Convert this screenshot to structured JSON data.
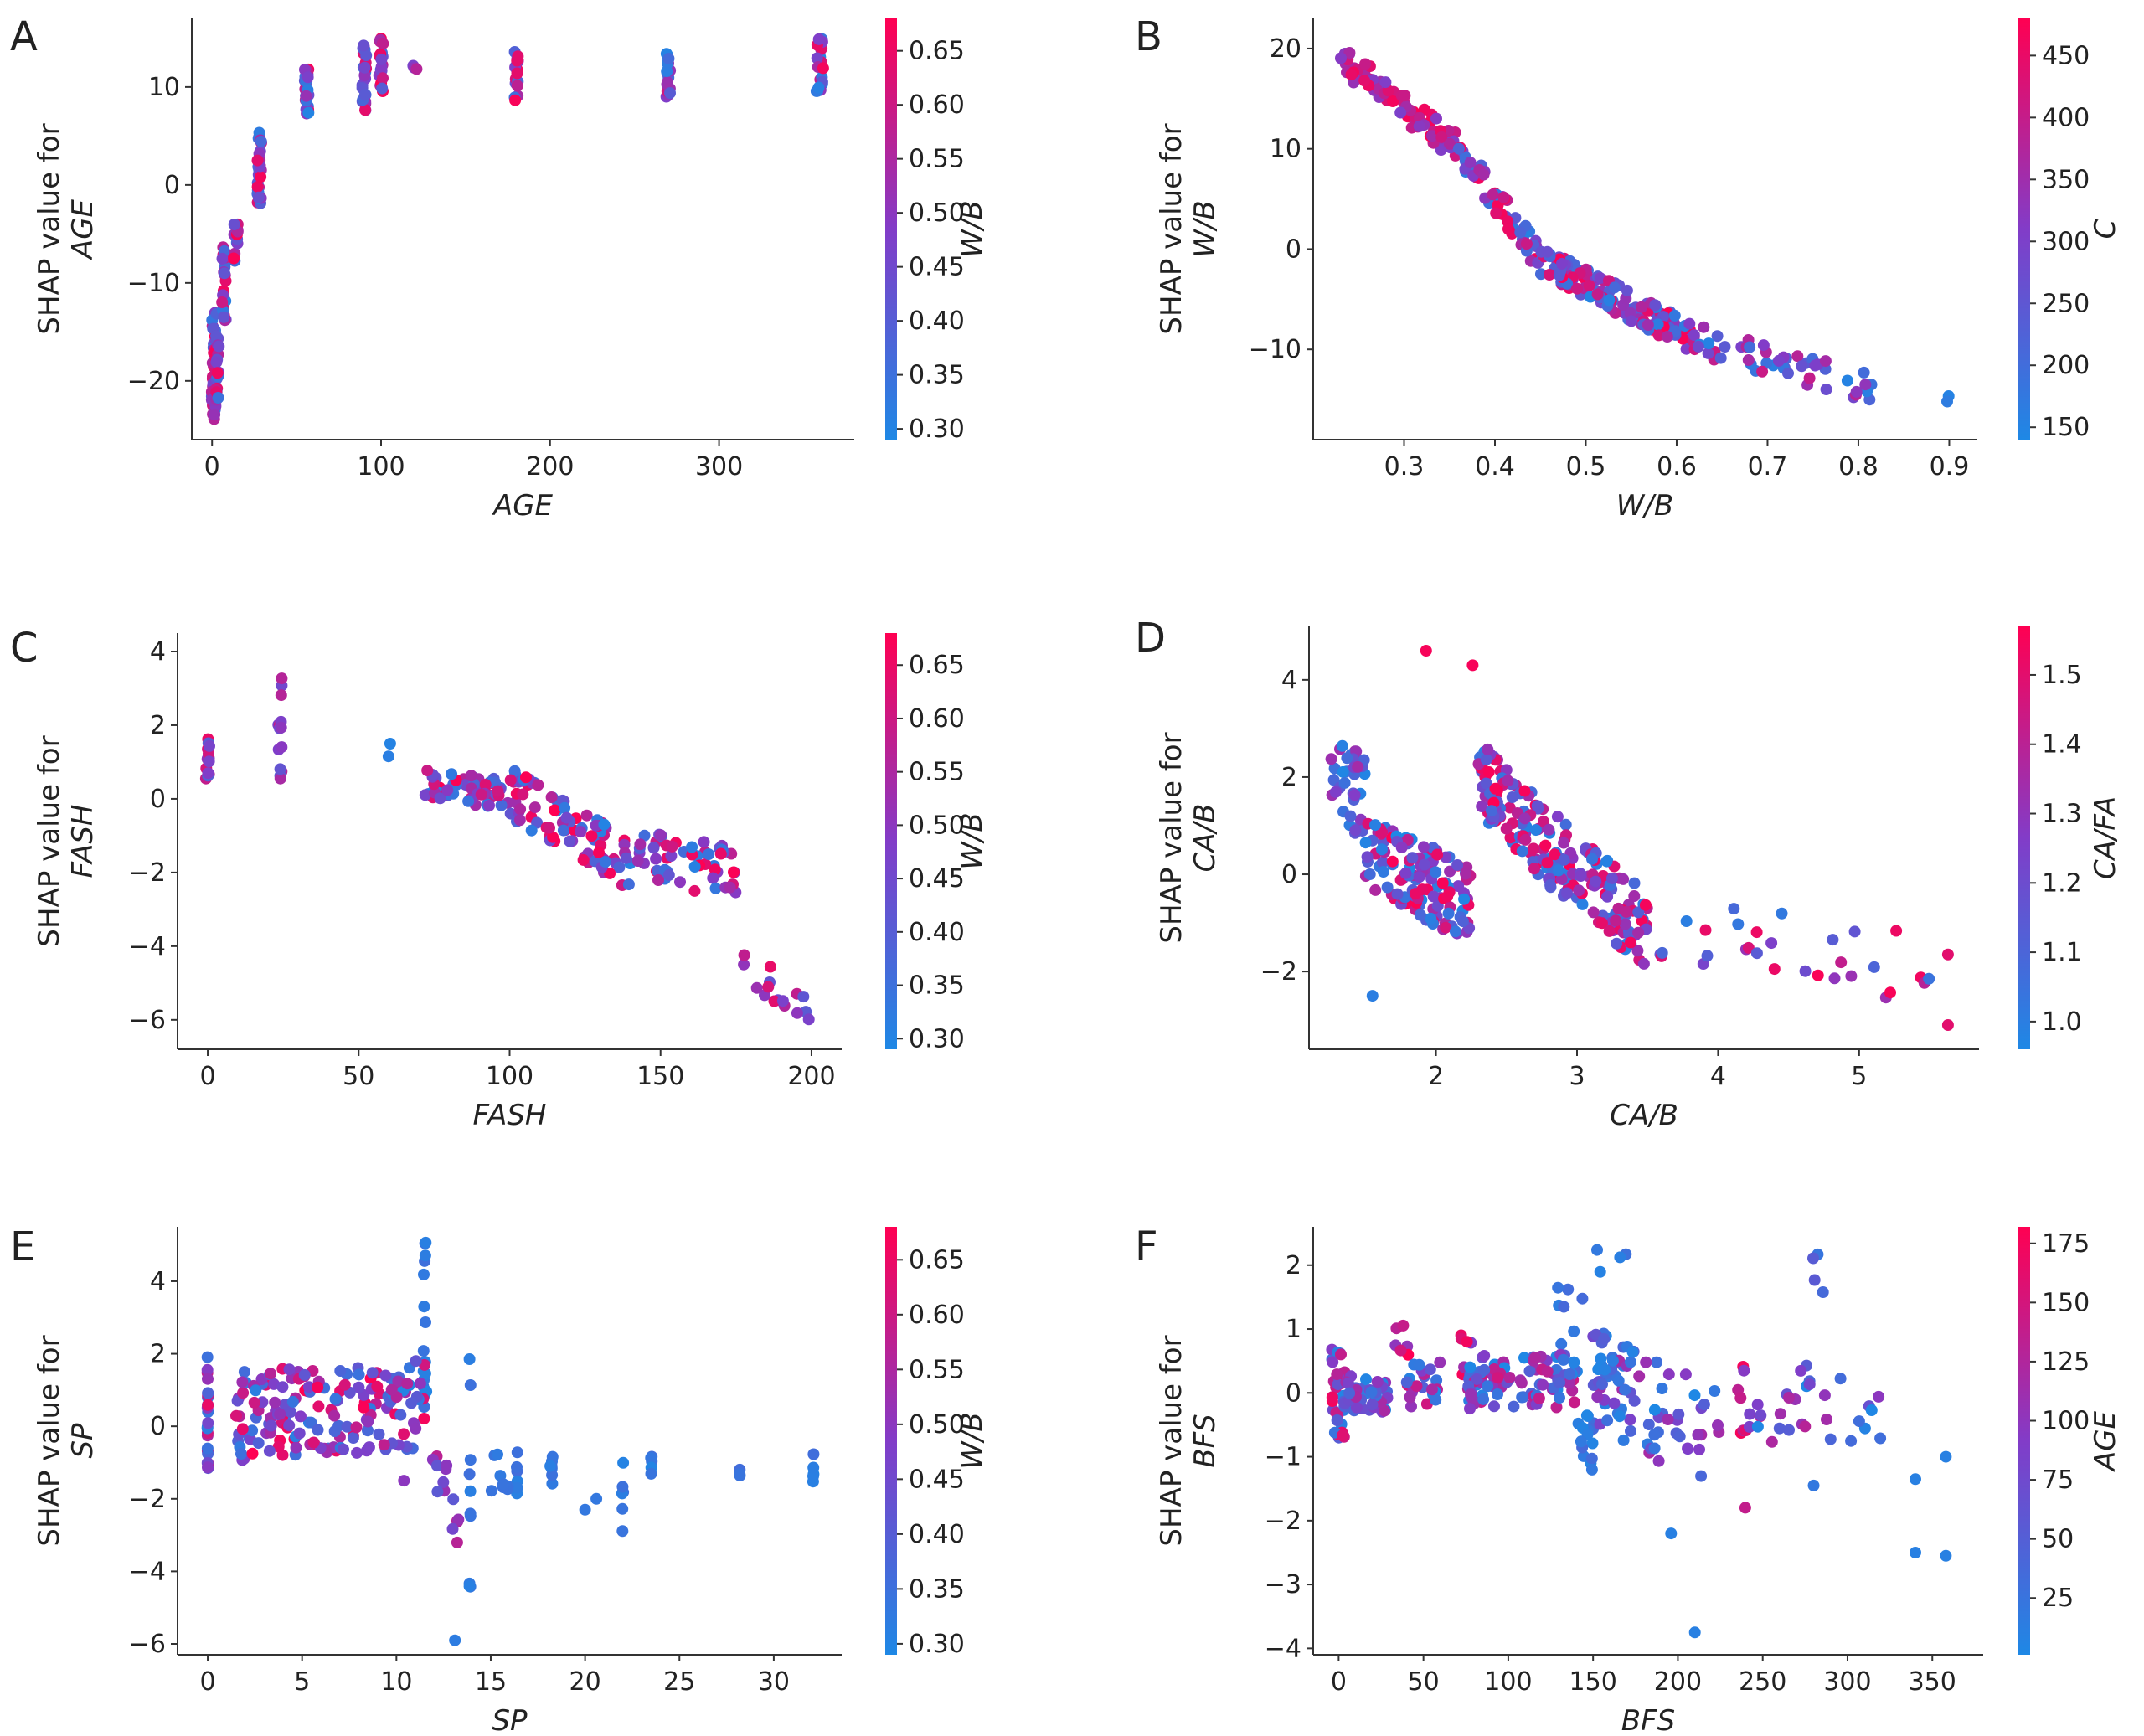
{
  "chart_data": [
    {
      "panel": "A",
      "type": "scatter",
      "xlabel": "AGE",
      "ylabel_line1": "SHAP value for",
      "ylabel_line2": "AGE",
      "xlim": [
        -12,
        380
      ],
      "ylim": [
        -26,
        17
      ],
      "xticks": [
        0,
        100,
        200,
        300
      ],
      "yticks": [
        -20,
        -10,
        0,
        10
      ],
      "colorbar": {
        "label": "W/B",
        "range": [
          0.29,
          0.68
        ],
        "ticks": [
          0.3,
          0.35,
          0.4,
          0.45,
          0.5,
          0.55,
          0.6,
          0.65
        ]
      },
      "clusters": [
        {
          "x": 1,
          "jitter": 0.3,
          "y": [
            -25,
            -13
          ],
          "c": [
            0.3,
            0.68
          ],
          "n": 45
        },
        {
          "x": 3,
          "jitter": 0.3,
          "y": [
            -22,
            -13
          ],
          "c": [
            0.3,
            0.68
          ],
          "n": 25
        },
        {
          "x": 7,
          "jitter": 0.3,
          "y": [
            -14,
            -6
          ],
          "c": [
            0.3,
            0.68
          ],
          "n": 25
        },
        {
          "x": 14,
          "jitter": 0.3,
          "y": [
            -8,
            -3
          ],
          "c": [
            0.3,
            0.68
          ],
          "n": 15
        },
        {
          "x": 28,
          "jitter": 0.3,
          "y": [
            -2,
            6
          ],
          "c": [
            0.3,
            0.68
          ],
          "n": 30
        },
        {
          "x": 56,
          "jitter": 0.3,
          "y": [
            6.5,
            12
          ],
          "c": [
            0.3,
            0.68
          ],
          "n": 25
        },
        {
          "x": 90,
          "jitter": 0.3,
          "y": [
            7.5,
            15
          ],
          "c": [
            0.3,
            0.68
          ],
          "n": 25
        },
        {
          "x": 100,
          "jitter": 0.3,
          "y": [
            9.5,
            15
          ],
          "c": [
            0.3,
            0.68
          ],
          "n": 22
        },
        {
          "x": 120,
          "jitter": 0.3,
          "y": [
            11.8,
            12.5
          ],
          "c": [
            0.3,
            0.68
          ],
          "n": 3
        },
        {
          "x": 180,
          "jitter": 0.3,
          "y": [
            8.5,
            14
          ],
          "c": [
            0.3,
            0.68
          ],
          "n": 18
        },
        {
          "x": 270,
          "jitter": 0.3,
          "y": [
            9,
            14
          ],
          "c": [
            0.3,
            0.68
          ],
          "n": 18
        },
        {
          "x": 360,
          "jitter": 0.6,
          "y": [
            9.5,
            15.5
          ],
          "c": [
            0.3,
            0.68
          ],
          "n": 20
        }
      ]
    },
    {
      "panel": "B",
      "type": "scatter",
      "xlabel": "W/B",
      "ylabel_line1": "SHAP value for",
      "ylabel_line2": "W/B",
      "xlim": [
        0.2,
        0.93
      ],
      "ylim": [
        -19,
        23
      ],
      "xticks": [
        0.3,
        0.4,
        0.5,
        0.6,
        0.7,
        0.8,
        0.9
      ],
      "yticks": [
        -10,
        0,
        10,
        20
      ],
      "colorbar": {
        "label": "C",
        "range": [
          140,
          480
        ],
        "ticks": [
          150,
          200,
          250,
          300,
          350,
          400,
          450
        ]
      },
      "segments": [
        {
          "x": [
            0.23,
            0.36
          ],
          "y": [
            19,
            10
          ],
          "spread": 3,
          "c": [
            300,
            480
          ],
          "n": 80
        },
        {
          "x": [
            0.36,
            0.45
          ],
          "y": [
            10,
            -1
          ],
          "spread": 3,
          "c": [
            150,
            480
          ],
          "n": 60
        },
        {
          "x": [
            0.45,
            0.62
          ],
          "y": [
            -1,
            -9
          ],
          "spread": 3,
          "c": [
            150,
            480
          ],
          "n": 140
        },
        {
          "x": [
            0.62,
            0.82
          ],
          "y": [
            -9,
            -14
          ],
          "spread": 3,
          "c": [
            150,
            420
          ],
          "n": 50
        },
        {
          "x": [
            0.895,
            0.9
          ],
          "y": [
            -17,
            -14
          ],
          "spread": 0.5,
          "c": [
            150,
            180
          ],
          "n": 2
        }
      ]
    },
    {
      "panel": "C",
      "type": "scatter",
      "xlabel": "FASH",
      "ylabel_line1": "SHAP value for",
      "ylabel_line2": "FASH",
      "xlim": [
        -10,
        210
      ],
      "ylim": [
        -6.8,
        4.5
      ],
      "xticks": [
        0,
        50,
        100,
        150,
        200
      ],
      "yticks": [
        -6,
        -4,
        -2,
        0,
        2,
        4
      ],
      "colorbar": {
        "label": "W/B",
        "range": [
          0.29,
          0.68
        ],
        "ticks": [
          0.3,
          0.35,
          0.4,
          0.45,
          0.5,
          0.55,
          0.6,
          0.65
        ]
      },
      "clusters": [
        {
          "x": 0,
          "jitter": 0.3,
          "y": [
            0.4,
            1.7
          ],
          "c": [
            0.3,
            0.68
          ],
          "n": 14
        },
        {
          "x": 24,
          "jitter": 0.3,
          "y": [
            0.5,
            3.5
          ],
          "c": [
            0.4,
            0.6
          ],
          "n": 14
        },
        {
          "x": 60,
          "jitter": 0.3,
          "y": [
            0.4,
            1.9
          ],
          "c": [
            0.3,
            0.34
          ],
          "n": 2
        }
      ],
      "segments": [
        {
          "x": [
            72,
            100
          ],
          "y": [
            0.4,
            0.1
          ],
          "spread": 0.8,
          "c": [
            0.3,
            0.68
          ],
          "n": 60
        },
        {
          "x": [
            100,
            140
          ],
          "y": [
            0.2,
            -1.8
          ],
          "spread": 1.4,
          "c": [
            0.3,
            0.68
          ],
          "n": 90
        },
        {
          "x": [
            140,
            175
          ],
          "y": [
            -1.5,
            -2.0
          ],
          "spread": 1.4,
          "c": [
            0.3,
            0.68
          ],
          "n": 55
        },
        {
          "x": [
            175,
            200
          ],
          "y": [
            -4.5,
            -6.1
          ],
          "spread": 1.4,
          "c": [
            0.4,
            0.68
          ],
          "n": 16
        }
      ]
    },
    {
      "panel": "D",
      "type": "scatter",
      "xlabel": "CA/B",
      "ylabel_line1": "SHAP value for",
      "ylabel_line2": "CA/B",
      "xlim": [
        1.1,
        5.85
      ],
      "ylim": [
        -3.6,
        5.1
      ],
      "xticks": [
        2,
        3,
        4,
        5
      ],
      "yticks": [
        -2,
        0,
        2,
        4
      ],
      "colorbar": {
        "label": "CA/FA",
        "range": [
          0.96,
          1.57
        ],
        "ticks": [
          1.0,
          1.1,
          1.2,
          1.3,
          1.4,
          1.5
        ]
      },
      "segments": [
        {
          "x": [
            1.25,
            1.5
          ],
          "y": [
            2.0,
            1.6
          ],
          "spread": 1.8,
          "c": [
            0.96,
            1.35
          ],
          "n": 35
        },
        {
          "x": [
            1.5,
            2.25
          ],
          "y": [
            0.4,
            -0.6
          ],
          "spread": 1.6,
          "c": [
            0.96,
            1.57
          ],
          "n": 130
        },
        {
          "x": [
            2.3,
            3.0
          ],
          "y": [
            2.0,
            0.0
          ],
          "spread": 1.6,
          "c": [
            0.96,
            1.57
          ],
          "n": 130
        },
        {
          "x": [
            3.0,
            3.5
          ],
          "y": [
            0.0,
            -1.2
          ],
          "spread": 1.6,
          "c": [
            0.96,
            1.57
          ],
          "n": 80
        },
        {
          "x": [
            3.5,
            5.6
          ],
          "y": [
            -1.0,
            -2.0
          ],
          "spread": 1.5,
          "c": [
            1.0,
            1.57
          ],
          "n": 30
        }
      ],
      "points": [
        {
          "x": 1.93,
          "y": 4.6,
          "c": 1.55
        },
        {
          "x": 2.26,
          "y": 4.3,
          "c": 1.55
        },
        {
          "x": 1.55,
          "y": -2.5,
          "c": 1.0
        },
        {
          "x": 5.63,
          "y": -3.1,
          "c": 1.5
        },
        {
          "x": 5.63,
          "y": -1.65,
          "c": 1.5
        }
      ]
    },
    {
      "panel": "E",
      "type": "scatter",
      "xlabel": "SP",
      "ylabel_line1": "SHAP value for",
      "ylabel_line2": "SP",
      "xlim": [
        -1.6,
        33.6
      ],
      "ylim": [
        -6.3,
        5.5
      ],
      "xticks": [
        0,
        5,
        10,
        15,
        20,
        25,
        30
      ],
      "yticks": [
        -6,
        -4,
        -2,
        0,
        2,
        4
      ],
      "colorbar": {
        "label": "W/B",
        "range": [
          0.29,
          0.68
        ],
        "ticks": [
          0.3,
          0.35,
          0.4,
          0.45,
          0.5,
          0.55,
          0.6,
          0.65
        ]
      },
      "clusters": [
        {
          "x": 0,
          "jitter": 0.05,
          "y": [
            -1.5,
            2.0
          ],
          "c": [
            0.3,
            0.68
          ],
          "n": 25
        },
        {
          "x": 11.5,
          "jitter": 0.25,
          "y": [
            0.5,
            5.1
          ],
          "c": [
            0.3,
            0.36
          ],
          "n": 18
        },
        {
          "x": 13.9,
          "jitter": 0.08,
          "y": [
            -4.6,
            2.3
          ],
          "c": [
            0.3,
            0.36
          ],
          "n": 10
        },
        {
          "x": 16.4,
          "jitter": 0.08,
          "y": [
            -1.9,
            -0.6
          ],
          "c": [
            0.3,
            0.36
          ],
          "n": 6
        },
        {
          "x": 18.2,
          "jitter": 0.3,
          "y": [
            -1.6,
            -0.8
          ],
          "c": [
            0.3,
            0.36
          ],
          "n": 8
        },
        {
          "x": 22.0,
          "jitter": 0.1,
          "y": [
            -3.8,
            -0.8
          ],
          "c": [
            0.3,
            0.36
          ],
          "n": 7
        },
        {
          "x": 23.5,
          "jitter": 0.1,
          "y": [
            -1.5,
            -0.4
          ],
          "c": [
            0.3,
            0.36
          ],
          "n": 5
        },
        {
          "x": 28.2,
          "jitter": 0.05,
          "y": [
            -1.4,
            -0.9
          ],
          "c": [
            0.3,
            0.36
          ],
          "n": 4
        },
        {
          "x": 32.1,
          "jitter": 0.05,
          "y": [
            -1.6,
            -0.6
          ],
          "c": [
            0.3,
            0.36
          ],
          "n": 5
        }
      ],
      "segments": [
        {
          "x": [
            1.5,
            11.5
          ],
          "y": [
            0.3,
            0.6
          ],
          "spread": 2.5,
          "c": [
            0.3,
            0.68
          ],
          "n": 170
        },
        {
          "x": 11.5,
          "y": 0,
          "c": 0,
          "n": 0
        },
        {
          "x": [
            11.8,
            13.3
          ],
          "y": [
            -0.8,
            -2.5
          ],
          "spread": 1.6,
          "c": [
            0.4,
            0.6
          ],
          "n": 14
        },
        {
          "x": [
            14.5,
            16
          ],
          "y": [
            -1.2,
            -1.3
          ],
          "spread": 1.2,
          "c": [
            0.3,
            0.36
          ],
          "n": 8
        }
      ],
      "points": [
        {
          "x": 13.1,
          "y": -5.9,
          "c": 0.32
        },
        {
          "x": 20.0,
          "y": -2.3,
          "c": 0.33
        },
        {
          "x": 20.6,
          "y": -2.0,
          "c": 0.33
        },
        {
          "x": 10.4,
          "y": -1.5,
          "c": 0.5
        }
      ]
    },
    {
      "panel": "F",
      "type": "scatter",
      "xlabel": "BFS",
      "ylabel_line1": "SHAP value for",
      "ylabel_line2": "BFS",
      "xlim": [
        -15,
        380
      ],
      "ylim": [
        -4.1,
        2.6
      ],
      "xticks": [
        0,
        50,
        100,
        150,
        200,
        250,
        300,
        350
      ],
      "yticks": [
        -4,
        -3,
        -2,
        -1,
        0,
        1,
        2
      ],
      "colorbar": {
        "label": "AGE",
        "range": [
          1,
          182
        ],
        "ticks": [
          25,
          50,
          75,
          100,
          125,
          150,
          175
        ]
      },
      "clusters": [
        {
          "x": 0,
          "jitter": 1.0,
          "y": [
            -0.75,
            0.75
          ],
          "c": [
            1,
            182
          ],
          "n": 35
        },
        {
          "x": 37,
          "jitter": 1.0,
          "y": [
            0.5,
            1.2
          ],
          "c": [
            90,
            182
          ],
          "n": 6
        },
        {
          "x": 75,
          "jitter": 1.0,
          "y": [
            0.2,
            1.1
          ],
          "c": [
            90,
            182
          ],
          "n": 6
        },
        {
          "x": 136,
          "jitter": 2.0,
          "y": [
            -0.2,
            1.7
          ],
          "c": [
            1,
            40
          ],
          "n": 12
        },
        {
          "x": 160,
          "jitter": 2.5,
          "y": [
            -0.6,
            2.3
          ],
          "c": [
            1,
            40
          ],
          "n": 16
        },
        {
          "x": 238,
          "jitter": 1.0,
          "y": [
            -1.95,
            0.5
          ],
          "c": [
            90,
            182
          ],
          "n": 8
        },
        {
          "x": 283,
          "jitter": 1.0,
          "y": [
            1.3,
            2.2
          ],
          "c": [
            1,
            60
          ],
          "n": 4
        }
      ],
      "segments": [
        {
          "x": [
            3,
            30
          ],
          "y": [
            0.0,
            0.0
          ],
          "spread": 0.6,
          "c": [
            1,
            120
          ],
          "n": 40
        },
        {
          "x": [
            40,
            60
          ],
          "y": [
            0.1,
            0.2
          ],
          "spread": 0.7,
          "c": [
            1,
            150
          ],
          "n": 25
        },
        {
          "x": [
            75,
            140
          ],
          "y": [
            0.2,
            0.2
          ],
          "spread": 0.9,
          "c": [
            1,
            150
          ],
          "n": 90
        },
        {
          "x": [
            140,
            150
          ],
          "y": [
            -0.8,
            -0.8
          ],
          "spread": 0.9,
          "c": [
            1,
            40
          ],
          "n": 14
        },
        {
          "x": [
            150,
            215
          ],
          "y": [
            0.2,
            -0.6
          ],
          "spread": 1.6,
          "c": [
            1,
            120
          ],
          "n": 70
        },
        {
          "x": [
            215,
            320
          ],
          "y": [
            -0.1,
            -0.2
          ],
          "spread": 1.3,
          "c": [
            1,
            140
          ],
          "n": 35
        }
      ],
      "points": [
        {
          "x": 210,
          "y": -3.75,
          "c": 10
        },
        {
          "x": 340,
          "y": -1.35,
          "c": 10
        },
        {
          "x": 340,
          "y": -2.5,
          "c": 10
        },
        {
          "x": 358,
          "y": -2.55,
          "c": 10
        },
        {
          "x": 358,
          "y": -1.0,
          "c": 10
        },
        {
          "x": 196,
          "y": -2.2,
          "c": 10
        },
        {
          "x": 280,
          "y": -1.45,
          "c": 20
        }
      ]
    }
  ]
}
